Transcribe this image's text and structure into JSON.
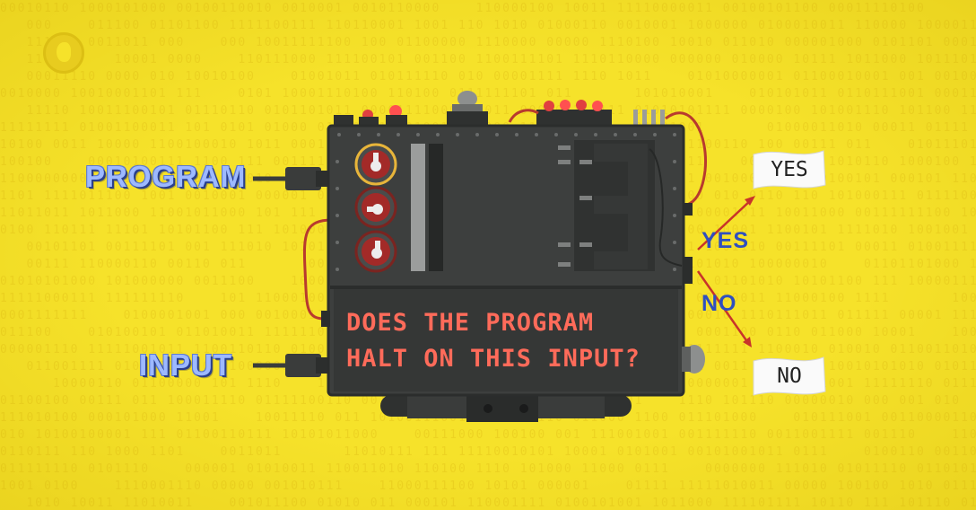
{
  "diagram": {
    "input_labels": {
      "program": "PROGRAM",
      "input": "INPUT"
    },
    "machine_question": {
      "line1": "DOES THE PROGRAM",
      "line2": "HALT ON THIS INPUT?"
    },
    "branch_labels": {
      "yes": "YES",
      "no": "NO"
    },
    "flag_labels": {
      "yes": "YES",
      "no": "NO"
    }
  },
  "colors": {
    "background": "#f6e22a",
    "machine_body": "#3d3f3e",
    "screen_text": "#ff6b5a",
    "branch_label": "#2f4fbf",
    "arrow": "#c8342a",
    "wire": "#b83a2e"
  },
  "icons": [
    "pbs-logo-icon",
    "dial-icon",
    "red-light-icon",
    "flag-icon",
    "arrow-icon",
    "plug-icon"
  ]
}
